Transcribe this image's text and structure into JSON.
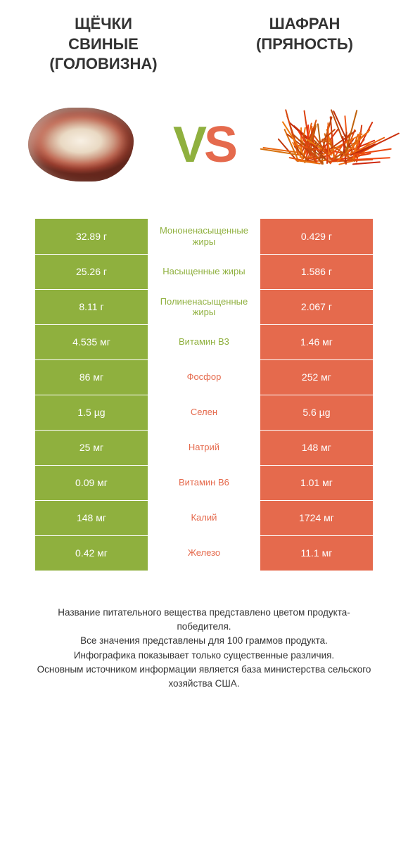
{
  "colors": {
    "green": "#8fb03e",
    "orange": "#e56a4d",
    "text": "#333333"
  },
  "header": {
    "left_line1": "ЩЁЧКИ",
    "left_line2": "СВИНЫЕ",
    "left_line3": "(ГОЛОВИЗНА)",
    "right_line1": "ШАФРАН",
    "right_line2": "(ПРЯНОСТЬ)"
  },
  "vs": {
    "v": "V",
    "s": "S"
  },
  "rows": [
    {
      "left": "32.89 г",
      "label": "Мононенасыщенные жиры",
      "right": "0.429 г",
      "winner": "left"
    },
    {
      "left": "25.26 г",
      "label": "Насыщенные жиры",
      "right": "1.586 г",
      "winner": "left"
    },
    {
      "left": "8.11 г",
      "label": "Полиненасыщенные жиры",
      "right": "2.067 г",
      "winner": "left"
    },
    {
      "left": "4.535 мг",
      "label": "Витамин B3",
      "right": "1.46 мг",
      "winner": "left"
    },
    {
      "left": "86 мг",
      "label": "Фосфор",
      "right": "252 мг",
      "winner": "right"
    },
    {
      "left": "1.5 µg",
      "label": "Селен",
      "right": "5.6 µg",
      "winner": "right"
    },
    {
      "left": "25 мг",
      "label": "Натрий",
      "right": "148 мг",
      "winner": "right"
    },
    {
      "left": "0.09 мг",
      "label": "Витамин B6",
      "right": "1.01 мг",
      "winner": "right"
    },
    {
      "left": "148 мг",
      "label": "Калий",
      "right": "1724 мг",
      "winner": "right"
    },
    {
      "left": "0.42 мг",
      "label": "Железо",
      "right": "11.1 мг",
      "winner": "right"
    }
  ],
  "footer": {
    "l1": "Название питательного вещества представлено цветом продукта-победителя.",
    "l2": "Все значения представлены для 100 граммов продукта.",
    "l3": "Инфографика показывает только существенные различия.",
    "l4": "Основным источником информации является база министерства сельского хозяйства США."
  },
  "saffron_strands": 90
}
